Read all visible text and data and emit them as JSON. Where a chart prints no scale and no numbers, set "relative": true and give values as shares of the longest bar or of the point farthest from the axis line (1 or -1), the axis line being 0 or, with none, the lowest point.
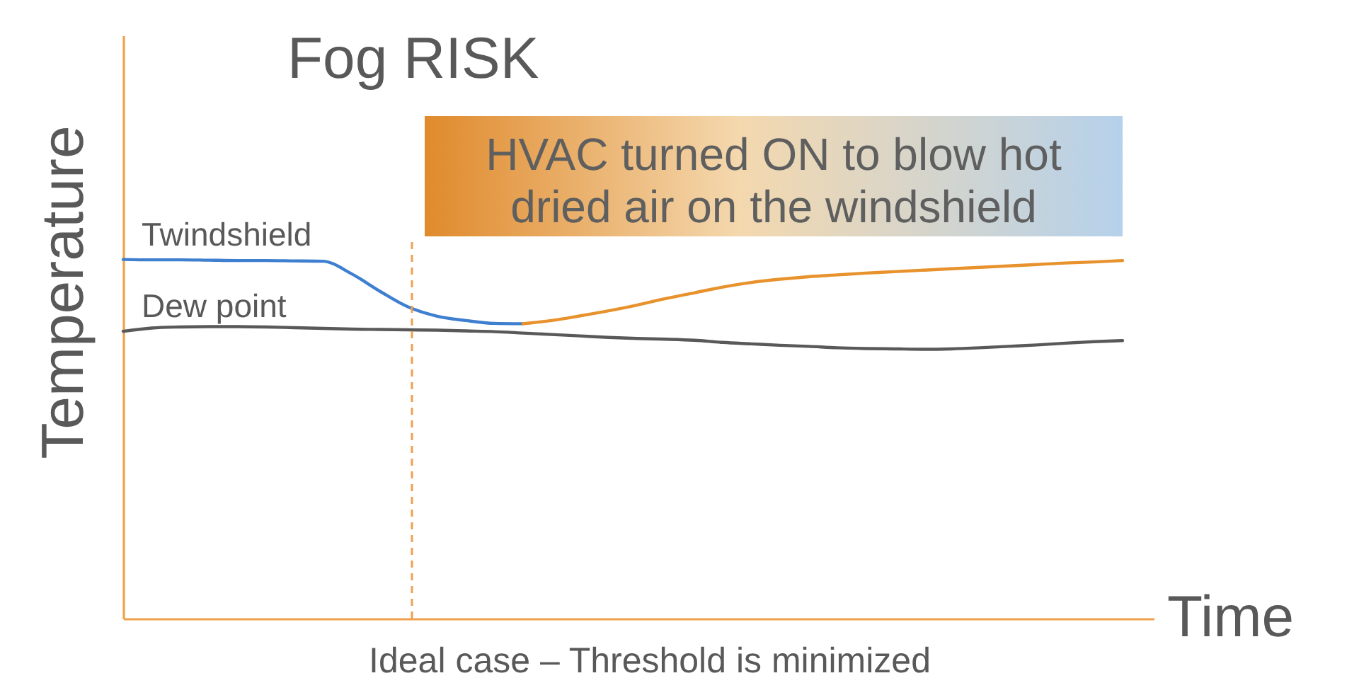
{
  "chart_data": {
    "type": "line",
    "title": "Fog RISK",
    "xlabel": "Time",
    "ylabel": "Temperature",
    "relative": true,
    "annotations": [
      "HVAC turned ON to blow hot\ndried air on the windshield",
      "Ideal case – Threshold is minimized"
    ],
    "categories": [
      null,
      null,
      null,
      null,
      null,
      null,
      null,
      null,
      null,
      null,
      null,
      null,
      null,
      null,
      null,
      null,
      null,
      null,
      null,
      null,
      null,
      null,
      null,
      null,
      null,
      null,
      null,
      null,
      null,
      null,
      null,
      null,
      null,
      null,
      null,
      null
    ],
    "series": [
      {
        "name": "Twindshield",
        "color": "#3f7fcf",
        "values": [
          1.0,
          0.999,
          0.999,
          0.998,
          0.997,
          0.997,
          0.996,
          0.995,
          0.96,
          0.911,
          0.867,
          0.842,
          0.83,
          0.822,
          0.821,
          null,
          null,
          null,
          null,
          null,
          null,
          null,
          null,
          null,
          null,
          null,
          null,
          null,
          null,
          null,
          null,
          null,
          null,
          null,
          null,
          null
        ]
      },
      {
        "color": "#e8922d",
        "values": [
          null,
          null,
          null,
          null,
          null,
          null,
          null,
          null,
          null,
          null,
          null,
          null,
          null,
          null,
          0.821,
          0.83,
          0.843,
          0.857,
          0.873,
          0.891,
          0.907,
          0.923,
          0.936,
          0.945,
          0.952,
          0.957,
          0.962,
          0.966,
          0.97,
          0.974,
          0.978,
          0.982,
          0.986,
          0.99,
          0.993,
          0.997
        ]
      },
      {
        "name": "Dew point",
        "color": "#595959",
        "values": [
          0.8,
          0.809,
          0.812,
          0.813,
          0.813,
          0.812,
          0.81,
          0.808,
          0.806,
          0.805,
          0.804,
          0.803,
          0.801,
          0.799,
          0.795,
          0.791,
          0.787,
          0.783,
          0.78,
          0.778,
          0.775,
          0.769,
          0.765,
          0.761,
          0.758,
          0.754,
          0.752,
          0.751,
          0.75,
          0.751,
          0.754,
          0.758,
          0.762,
          0.767,
          0.771,
          0.774
        ]
      }
    ]
  }
}
